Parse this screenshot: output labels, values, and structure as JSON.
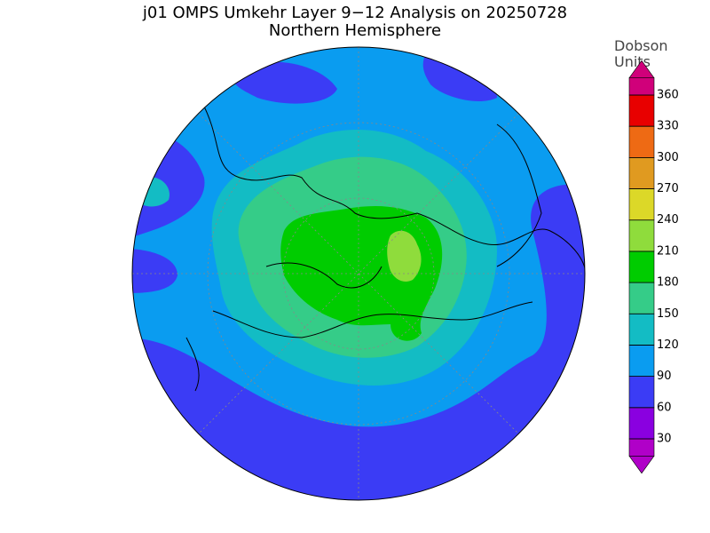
{
  "title": "j01 OMPS Umkehr Layer 9−12 Analysis on 20250728",
  "subtitle": "Northern Hemisphere",
  "colorbar": {
    "unit_lines": [
      "Dobson",
      "Units"
    ],
    "ticks": [
      30,
      60,
      90,
      120,
      150,
      180,
      210,
      240,
      270,
      300,
      330,
      360
    ],
    "colors": [
      "#b000c8",
      "#8a00e0",
      "#3b3cf5",
      "#0a9cf0",
      "#13bcc4",
      "#35cc88",
      "#00cc00",
      "#8fdc3c",
      "#dcd828",
      "#e09a20",
      "#ee6a14",
      "#e80000",
      "#d0007a"
    ]
  }
}
